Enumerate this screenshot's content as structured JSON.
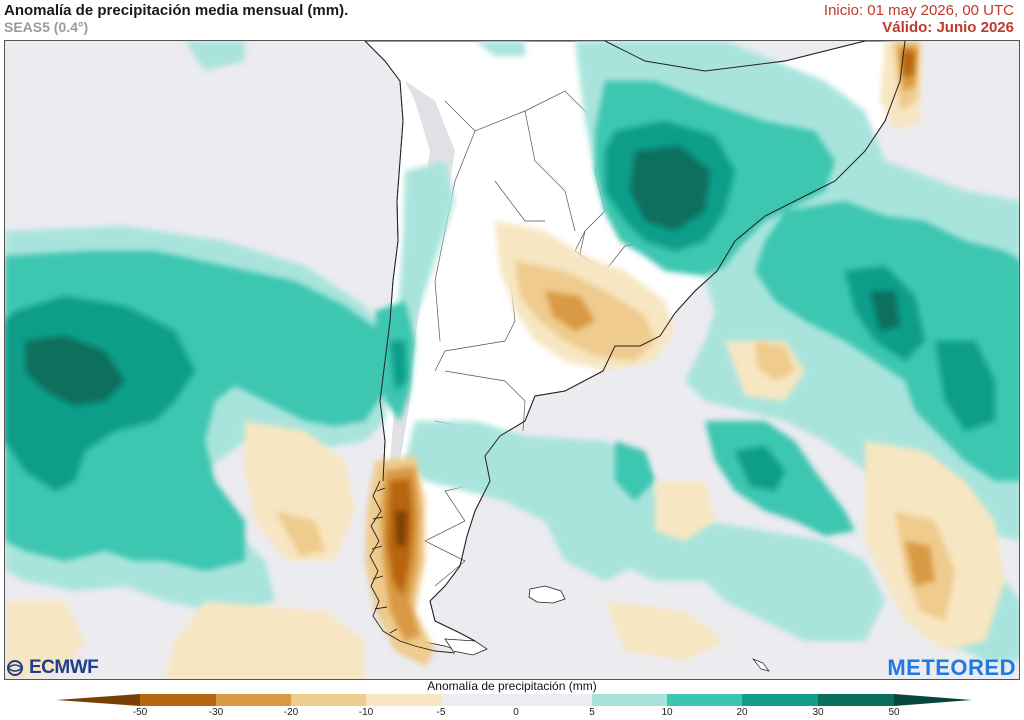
{
  "header": {
    "title": "Anomalía de precipitación media mensual (mm).",
    "model": "SEAS5 (0.4°)",
    "init": "Inicio: 01 may 2026, 00 UTC",
    "valid": "Válido: Junio 2026"
  },
  "branding": {
    "left_logo": "ECMWF",
    "right_logo": "METEORED",
    "left_logo_color": "#1f3f8c",
    "right_logo_color": "#1f7be0"
  },
  "legend": {
    "title": "Anomalía de precipitación (mm)",
    "ticks": [
      "-50",
      "-30",
      "-20",
      "-10",
      "-5",
      "0",
      "5",
      "10",
      "20",
      "30",
      "50"
    ],
    "colors": {
      "lt_-50": "#7a3f05",
      "-50_-30": "#b8650f",
      "-30_-20": "#d99a45",
      "-20_-10": "#efcb8d",
      "-10_-5": "#f7e6c2",
      "-5_5": "#ececf2",
      "5_10": "#a9e4dc",
      "10_20": "#3cc6b0",
      "20_30": "#119e8a",
      "30_50": "#0b6f5d",
      "gt_50": "#06463b"
    }
  },
  "map": {
    "region": "South America (southern cone)",
    "land_color": "#ffffff",
    "neutral_color": "#ebebf0"
  }
}
